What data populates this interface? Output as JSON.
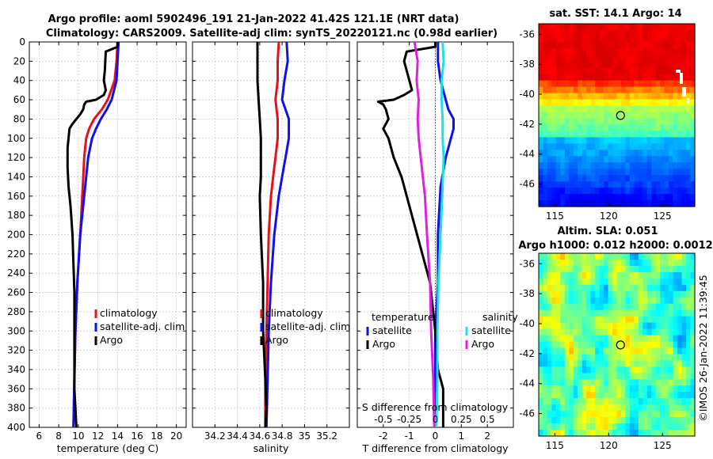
{
  "title_line1": "Argo profile: aoml 5902496_191 21-Jan-2022 41.42S 121.1E (NRT data)",
  "title_line2": "Climatology: CARS2009. Satellite-adj clim: synTS_20220121.nc (0.98d earlier)",
  "colors": {
    "climatology": "#e8101a",
    "satellite": "#1010ee",
    "argo": "#000000",
    "s_satellite": "#22dde8",
    "s_argo": "#e020e0"
  },
  "chart_data": [
    {
      "type": "line",
      "id": "temperature",
      "xlabel": "temperature (deg C)",
      "xlim": [
        5,
        21
      ],
      "ylim": [
        0,
        400
      ],
      "xticks": [
        "6",
        "8",
        "10",
        "12",
        "14",
        "16",
        "18",
        "20"
      ],
      "xtick_values": [
        6,
        8,
        10,
        12,
        14,
        16,
        18,
        20
      ],
      "yticks": [
        "0",
        "20",
        "40",
        "60",
        "80",
        "100",
        "120",
        "140",
        "160",
        "180",
        "200",
        "220",
        "240",
        "260",
        "280",
        "300",
        "320",
        "340",
        "360",
        "380",
        "400"
      ],
      "legend": [
        "climatology",
        "satellite-adj. clim",
        "Argo"
      ],
      "series": [
        {
          "name": "climatology",
          "color_key": "climatology",
          "depth": [
            0,
            20,
            40,
            60,
            70,
            80,
            90,
            100,
            110,
            120,
            140,
            160,
            180,
            200,
            250,
            300,
            350,
            400
          ],
          "values": [
            14.0,
            13.9,
            13.7,
            13.0,
            12.4,
            11.6,
            11.1,
            10.8,
            10.7,
            10.6,
            10.5,
            10.4,
            10.3,
            10.2,
            9.9,
            9.7,
            9.6,
            9.5
          ]
        },
        {
          "name": "satellite-adj. clim",
          "color_key": "satellite",
          "depth": [
            0,
            20,
            40,
            60,
            70,
            80,
            90,
            100,
            110,
            120,
            140,
            160,
            180,
            200,
            250,
            300,
            350,
            400
          ],
          "values": [
            14.1,
            14.0,
            13.9,
            13.4,
            12.9,
            12.3,
            11.8,
            11.4,
            11.2,
            11.0,
            10.8,
            10.6,
            10.4,
            10.2,
            9.9,
            9.7,
            9.6,
            9.5
          ]
        },
        {
          "name": "Argo",
          "color_key": "argo",
          "depth": [
            0,
            5,
            10,
            30,
            40,
            50,
            55,
            60,
            62,
            65,
            70,
            75,
            80,
            85,
            90,
            100,
            110,
            120,
            130,
            150,
            170,
            200,
            230,
            260,
            300,
            330,
            360,
            380,
            400
          ],
          "values": [
            14.0,
            14.0,
            12.8,
            12.7,
            12.6,
            12.8,
            12.6,
            11.8,
            10.8,
            10.6,
            10.5,
            10.2,
            9.8,
            9.4,
            9.1,
            9.0,
            8.9,
            8.9,
            8.9,
            9.0,
            9.2,
            9.4,
            9.5,
            9.6,
            9.6,
            9.6,
            9.6,
            9.7,
            9.8
          ]
        }
      ]
    },
    {
      "type": "line",
      "id": "salinity",
      "xlabel": "salinity",
      "xlim": [
        34.0,
        35.4
      ],
      "ylim": [
        0,
        400
      ],
      "xticks": [
        "34.2",
        "34.4",
        "34.6",
        "34.8",
        "35",
        "35.2"
      ],
      "xtick_values": [
        34.2,
        34.4,
        34.6,
        34.8,
        35.0,
        35.2
      ],
      "legend": [
        "climatology",
        "satellite-adj. clim",
        "Argo"
      ],
      "series": [
        {
          "name": "climatology",
          "color_key": "climatology",
          "depth": [
            0,
            20,
            40,
            60,
            80,
            100,
            120,
            140,
            160,
            200,
            250,
            300,
            350,
            400
          ],
          "values": [
            34.77,
            34.76,
            34.76,
            34.74,
            34.76,
            34.76,
            34.74,
            34.72,
            34.7,
            34.68,
            34.67,
            34.66,
            34.65,
            34.65
          ]
        },
        {
          "name": "satellite-adj. clim",
          "color_key": "satellite",
          "depth": [
            0,
            20,
            40,
            60,
            80,
            100,
            120,
            140,
            160,
            200,
            250,
            300,
            350,
            400
          ],
          "values": [
            34.84,
            34.85,
            34.82,
            34.8,
            34.86,
            34.86,
            34.83,
            34.8,
            34.77,
            34.73,
            34.7,
            34.68,
            34.67,
            34.66
          ]
        },
        {
          "name": "Argo",
          "color_key": "argo",
          "depth": [
            0,
            20,
            40,
            60,
            80,
            100,
            120,
            140,
            160,
            200,
            250,
            300,
            350,
            380,
            400
          ],
          "values": [
            34.58,
            34.58,
            34.58,
            34.59,
            34.6,
            34.61,
            34.61,
            34.61,
            34.6,
            34.61,
            34.63,
            34.63,
            34.65,
            34.66,
            34.65
          ]
        }
      ]
    },
    {
      "type": "line",
      "id": "differences",
      "xlabel": "T difference from climatology",
      "xlabel_s": "S difference from climatology",
      "xlim": [
        -3,
        3
      ],
      "ylim": [
        0,
        400
      ],
      "xticks": [
        "-2",
        "-1",
        "0",
        "1",
        "2"
      ],
      "xtick_values": [
        -2,
        -1,
        0,
        1,
        2
      ],
      "s_ticks": [
        "-0.5",
        "-0.25",
        "0",
        "0.25",
        "0.5"
      ],
      "s_tick_values": [
        -0.5,
        -0.25,
        0,
        0.25,
        0.5
      ],
      "legend_temperature_heading": "temperature",
      "legend_temperature": [
        "satellite",
        "Argo"
      ],
      "legend_salinity_heading": "salinity",
      "legend_salinity": [
        "satellite",
        "Argo"
      ],
      "series": [
        {
          "name": "T satellite",
          "color_key": "satellite",
          "axis": "T",
          "depth": [
            0,
            20,
            40,
            60,
            70,
            80,
            90,
            100,
            120,
            150,
            200,
            250,
            300,
            350,
            400
          ],
          "values": [
            0.1,
            0.1,
            0.2,
            0.4,
            0.5,
            0.7,
            0.7,
            0.6,
            0.4,
            0.2,
            0.1,
            0.1,
            0.0,
            0.0,
            0.0
          ]
        },
        {
          "name": "T Argo",
          "color_key": "argo",
          "axis": "T",
          "depth": [
            0,
            5,
            10,
            20,
            30,
            40,
            50,
            55,
            60,
            62,
            65,
            70,
            80,
            90,
            100,
            120,
            140,
            160,
            200,
            250,
            300,
            340,
            360,
            380,
            400
          ],
          "values": [
            0.0,
            0.0,
            -1.1,
            -1.2,
            -1.1,
            -1.0,
            -0.9,
            -1.2,
            -1.6,
            -2.2,
            -2.0,
            -1.9,
            -1.8,
            -2.0,
            -1.8,
            -1.6,
            -1.3,
            -1.1,
            -0.7,
            -0.2,
            0.0,
            0.1,
            0.3,
            0.3,
            0.3
          ]
        },
        {
          "name": "S satellite",
          "color_key": "s_satellite",
          "axis": "S",
          "depth": [
            0,
            20,
            40,
            60,
            80,
            100,
            120,
            150,
            200,
            250,
            300,
            350,
            400
          ],
          "values": [
            0.07,
            0.08,
            0.06,
            0.06,
            0.07,
            0.07,
            0.08,
            0.07,
            0.05,
            0.03,
            0.02,
            0.02,
            0.01
          ]
        },
        {
          "name": "S Argo",
          "color_key": "s_argo",
          "axis": "S",
          "depth": [
            0,
            20,
            40,
            60,
            80,
            100,
            120,
            140,
            160,
            200,
            250,
            300,
            350,
            400
          ],
          "values": [
            -0.2,
            -0.17,
            -0.18,
            -0.16,
            -0.17,
            -0.16,
            -0.14,
            -0.12,
            -0.1,
            -0.08,
            -0.05,
            -0.04,
            -0.02,
            -0.01
          ]
        }
      ]
    },
    {
      "type": "heatmap",
      "id": "sst_map",
      "title": "sat. SST: 14.1 Argo: 14",
      "xticks": [
        "115",
        "120",
        "125"
      ],
      "xtick_values": [
        115,
        120,
        125
      ],
      "yticks": [
        "-36",
        "-38",
        "-40",
        "-42",
        "-44",
        "-46"
      ],
      "ytick_values": [
        -36,
        -38,
        -40,
        -42,
        -44,
        -46
      ],
      "xlim": [
        113.5,
        128
      ],
      "ylim": [
        -47.5,
        -35.3
      ],
      "argo_position": [
        121.1,
        -41.42
      ]
    },
    {
      "type": "heatmap",
      "id": "sla_map",
      "title_line1": "Altim. SLA: 0.051",
      "title_line2": "Argo h1000: 0.012 h2000: 0.0012",
      "xticks": [
        "115",
        "120",
        "125"
      ],
      "xtick_values": [
        115,
        120,
        125
      ],
      "yticks": [
        "-36",
        "-38",
        "-40",
        "-42",
        "-44",
        "-46"
      ],
      "ytick_values": [
        -36,
        -38,
        -40,
        -42,
        -44,
        -46
      ],
      "xlim": [
        113.5,
        128
      ],
      "ylim": [
        -47.5,
        -35.3
      ],
      "argo_position": [
        121.1,
        -41.42
      ]
    }
  ],
  "credit": "©IMOS 26-Jan-2022 11:39:45"
}
